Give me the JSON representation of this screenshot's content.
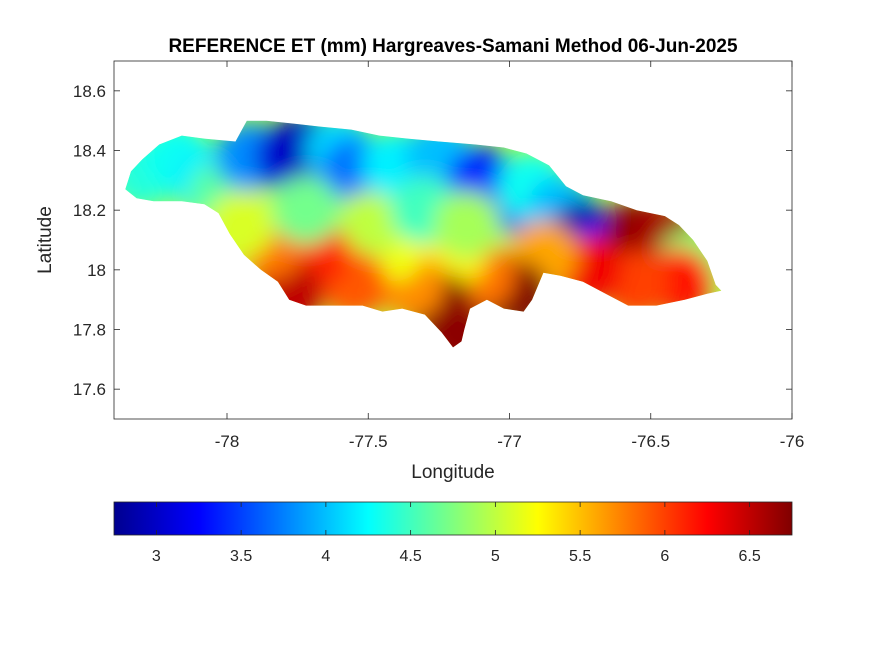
{
  "chart_data": {
    "type": "heatmap",
    "title": "REFERENCE ET (mm) Hargreaves-Samani Method  06-Jun-2025",
    "xlabel": "Longitude",
    "ylabel": "Latitude",
    "xlim": [
      -78.4,
      -76
    ],
    "ylim": [
      17.5,
      18.7
    ],
    "xticks": [
      -78,
      -77.5,
      -77,
      -76.5,
      -76
    ],
    "xtick_labels": [
      "-78",
      "-77.5",
      "-77",
      "-76.5",
      "-76"
    ],
    "yticks": [
      17.6,
      17.8,
      18,
      18.2,
      18.4,
      18.6
    ],
    "ytick_labels": [
      "17.6",
      "17.8",
      "18",
      "18.2",
      "18.4",
      "18.6"
    ],
    "colormap": "jet",
    "colorbar": {
      "orientation": "horizontal",
      "location": "below",
      "clim": [
        2.75,
        6.75
      ],
      "ticks": [
        3,
        3.5,
        4,
        4.5,
        5,
        5.5,
        6,
        6.5
      ],
      "tick_labels": [
        "3",
        "3.5",
        "4",
        "4.5",
        "5",
        "5.5",
        "6",
        "6.5"
      ]
    },
    "grid": false,
    "region_outline": [
      [
        -78.36,
        18.27
      ],
      [
        -78.34,
        18.33
      ],
      [
        -78.3,
        18.37
      ],
      [
        -78.24,
        18.42
      ],
      [
        -78.16,
        18.45
      ],
      [
        -78.08,
        18.44
      ],
      [
        -77.97,
        18.43
      ],
      [
        -77.93,
        18.5
      ],
      [
        -77.86,
        18.5
      ],
      [
        -77.76,
        18.49
      ],
      [
        -77.67,
        18.48
      ],
      [
        -77.56,
        18.47
      ],
      [
        -77.46,
        18.45
      ],
      [
        -77.36,
        18.44
      ],
      [
        -77.25,
        18.43
      ],
      [
        -77.12,
        18.42
      ],
      [
        -77.02,
        18.41
      ],
      [
        -76.94,
        18.39
      ],
      [
        -76.86,
        18.35
      ],
      [
        -76.8,
        18.28
      ],
      [
        -76.74,
        18.25
      ],
      [
        -76.64,
        18.23
      ],
      [
        -76.55,
        18.2
      ],
      [
        -76.45,
        18.18
      ],
      [
        -76.4,
        18.15
      ],
      [
        -76.35,
        18.1
      ],
      [
        -76.3,
        18.03
      ],
      [
        -76.27,
        17.95
      ],
      [
        -76.25,
        17.93
      ],
      [
        -76.3,
        17.92
      ],
      [
        -76.38,
        17.9
      ],
      [
        -76.48,
        17.88
      ],
      [
        -76.58,
        17.88
      ],
      [
        -76.66,
        17.92
      ],
      [
        -76.74,
        17.96
      ],
      [
        -76.82,
        17.98
      ],
      [
        -76.88,
        17.99
      ],
      [
        -76.92,
        17.9
      ],
      [
        -76.95,
        17.86
      ],
      [
        -77.02,
        17.87
      ],
      [
        -77.08,
        17.9
      ],
      [
        -77.14,
        17.87
      ],
      [
        -77.16,
        17.8
      ],
      [
        -77.17,
        17.76
      ],
      [
        -77.2,
        17.74
      ],
      [
        -77.24,
        17.79
      ],
      [
        -77.3,
        17.85
      ],
      [
        -77.38,
        17.87
      ],
      [
        -77.45,
        17.86
      ],
      [
        -77.52,
        17.88
      ],
      [
        -77.62,
        17.88
      ],
      [
        -77.72,
        17.88
      ],
      [
        -77.78,
        17.9
      ],
      [
        -77.82,
        17.96
      ],
      [
        -77.88,
        18.0
      ],
      [
        -77.94,
        18.05
      ],
      [
        -77.99,
        18.12
      ],
      [
        -78.03,
        18.19
      ],
      [
        -78.08,
        18.22
      ],
      [
        -78.16,
        18.23
      ],
      [
        -78.26,
        18.23
      ],
      [
        -78.32,
        18.24
      ]
    ],
    "field_samples": [
      {
        "lon": -78.3,
        "lat": 18.32,
        "value": 4.4
      },
      {
        "lon": -78.18,
        "lat": 18.38,
        "value": 4.3
      },
      {
        "lon": -78.08,
        "lat": 18.3,
        "value": 4.2
      },
      {
        "lon": -78.02,
        "lat": 18.25,
        "value": 4.6
      },
      {
        "lon": -77.92,
        "lat": 18.38,
        "value": 3.8
      },
      {
        "lon": -77.78,
        "lat": 18.38,
        "value": 3.1
      },
      {
        "lon": -77.72,
        "lat": 18.41,
        "value": 3.0
      },
      {
        "lon": -77.6,
        "lat": 18.4,
        "value": 4.1
      },
      {
        "lon": -77.55,
        "lat": 18.33,
        "value": 3.7
      },
      {
        "lon": -77.4,
        "lat": 18.35,
        "value": 4.2
      },
      {
        "lon": -77.25,
        "lat": 18.38,
        "value": 4.0
      },
      {
        "lon": -77.1,
        "lat": 18.3,
        "value": 3.4
      },
      {
        "lon": -77.0,
        "lat": 18.24,
        "value": 3.5
      },
      {
        "lon": -76.92,
        "lat": 18.28,
        "value": 4.3
      },
      {
        "lon": -76.82,
        "lat": 18.2,
        "value": 4.0
      },
      {
        "lon": -76.74,
        "lat": 18.12,
        "value": 2.9
      },
      {
        "lon": -76.65,
        "lat": 18.07,
        "value": 3.4
      },
      {
        "lon": -76.55,
        "lat": 18.12,
        "value": 6.7
      },
      {
        "lon": -76.45,
        "lat": 18.11,
        "value": 6.6
      },
      {
        "lon": -76.36,
        "lat": 18.02,
        "value": 4.8
      },
      {
        "lon": -76.4,
        "lat": 17.96,
        "value": 6.2
      },
      {
        "lon": -76.55,
        "lat": 17.95,
        "value": 6.0
      },
      {
        "lon": -76.72,
        "lat": 18.0,
        "value": 6.3
      },
      {
        "lon": -76.88,
        "lat": 18.05,
        "value": 5.6
      },
      {
        "lon": -76.98,
        "lat": 17.92,
        "value": 6.8
      },
      {
        "lon": -77.1,
        "lat": 17.98,
        "value": 5.8
      },
      {
        "lon": -77.2,
        "lat": 18.05,
        "value": 5.3
      },
      {
        "lon": -77.25,
        "lat": 17.88,
        "value": 6.8
      },
      {
        "lon": -77.18,
        "lat": 17.78,
        "value": 6.7
      },
      {
        "lon": -77.35,
        "lat": 17.95,
        "value": 5.7
      },
      {
        "lon": -77.42,
        "lat": 18.07,
        "value": 5.2
      },
      {
        "lon": -77.5,
        "lat": 18.15,
        "value": 5.0
      },
      {
        "lon": -77.55,
        "lat": 17.95,
        "value": 5.9
      },
      {
        "lon": -77.68,
        "lat": 18.05,
        "value": 6.1
      },
      {
        "lon": -77.78,
        "lat": 17.92,
        "value": 6.5
      },
      {
        "lon": -77.85,
        "lat": 18.08,
        "value": 5.8
      },
      {
        "lon": -77.95,
        "lat": 18.15,
        "value": 5.1
      },
      {
        "lon": -77.72,
        "lat": 18.2,
        "value": 4.7
      },
      {
        "lon": -77.3,
        "lat": 18.2,
        "value": 4.5
      },
      {
        "lon": -77.15,
        "lat": 18.15,
        "value": 4.9
      }
    ]
  }
}
